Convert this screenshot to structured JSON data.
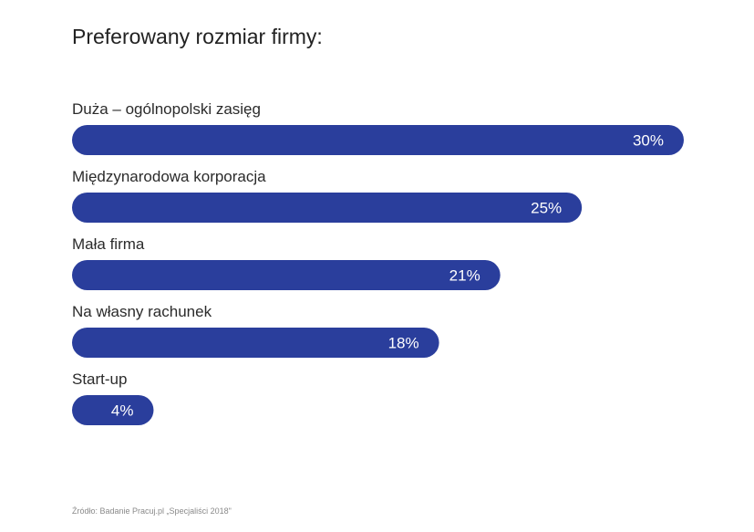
{
  "chart_data": {
    "type": "bar",
    "orientation": "horizontal",
    "title": "Preferowany rozmiar firmy:",
    "categories": [
      "Duża – ogólnopolski zasięg",
      "Międzynarodowa korporacja",
      "Mała firma",
      "Na własny rachunek",
      "Start-up"
    ],
    "values": [
      30,
      25,
      21,
      18,
      4
    ],
    "value_labels": [
      "30%",
      "25%",
      "21%",
      "18%",
      "4%"
    ],
    "unit": "%",
    "bar_color": "#2a3e9c",
    "label_color": "#ffffff",
    "grid": false,
    "legend": "none"
  },
  "footer": {
    "source": "Źródło: Badanie Pracuj.pl „Specjaliści 2018\""
  }
}
